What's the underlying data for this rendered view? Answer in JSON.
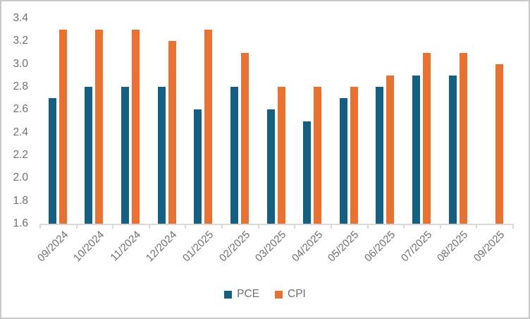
{
  "chart_data": {
    "type": "bar",
    "title": "",
    "xlabel": "",
    "ylabel": "",
    "categories": [
      "09/2024",
      "10/2024",
      "11/2024",
      "12/2024",
      "01/2025",
      "02/2025",
      "03/2025",
      "04/2025",
      "05/2025",
      "06/2025",
      "07/2025",
      "08/2025",
      "09/2025"
    ],
    "series": [
      {
        "name": "PCE",
        "color": "#156082",
        "values": [
          2.7,
          2.8,
          2.8,
          2.8,
          2.6,
          2.8,
          2.6,
          2.5,
          2.7,
          2.8,
          2.9,
          2.9,
          null
        ]
      },
      {
        "name": "CPI",
        "color": "#E97132",
        "values": [
          3.3,
          3.3,
          3.3,
          3.2,
          3.3,
          3.1,
          2.8,
          2.8,
          2.8,
          2.9,
          3.1,
          3.1,
          3.0
        ]
      }
    ],
    "ylim": [
      1.6,
      3.4
    ],
    "y_ticks": [
      "3.4",
      "3.2",
      "3.0",
      "2.8",
      "2.6",
      "2.4",
      "2.2",
      "2.0",
      "1.8",
      "1.6"
    ],
    "grid": false,
    "legend_position": "bottom"
  },
  "colors": {
    "pce": "#156082",
    "cpi": "#E97132",
    "axis_line": "#d9d9d9",
    "axis_text": "#6f6f6f",
    "frame_border": "#c9c9c9",
    "background": "#ffffff"
  }
}
